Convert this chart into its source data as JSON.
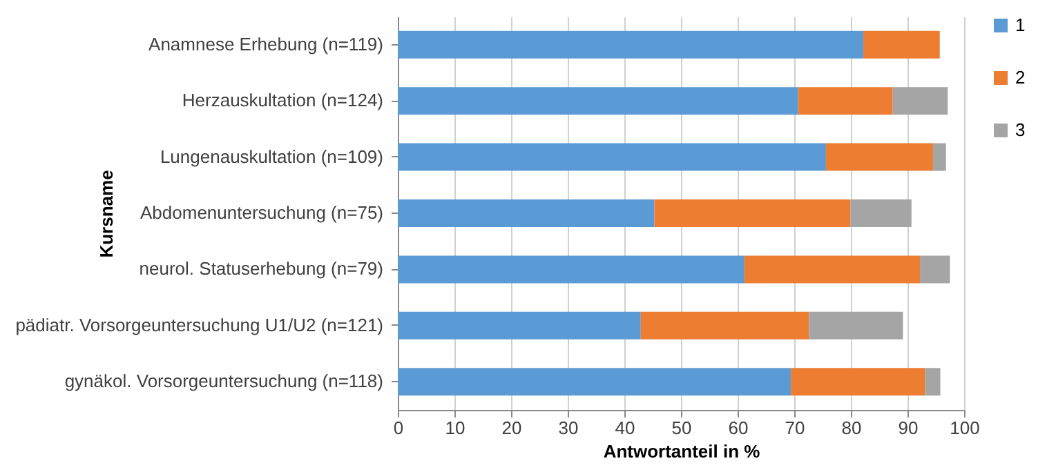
{
  "chart_data": {
    "type": "bar",
    "orientation": "horizontal",
    "stacked": true,
    "xlabel": "Antwortanteil in %",
    "ylabel": "Kursname",
    "categories": [
      "Anamnese Erhebung (n=119)",
      "Herzauskultation (n=124)",
      "Lungenauskultation (n=109)",
      "Abdomenuntersuchung (n=75)",
      "neurol. Statuserhebung (n=79)",
      "pädiatr. Vorsorgeuntersuchung U1/U2 (n=121)",
      "gynäkol. Vorsorgeuntersuchung (n=118)"
    ],
    "series": [
      {
        "name": "1",
        "color": "#5b9bd5",
        "values": [
          82.2,
          70.7,
          75.6,
          45.3,
          61.2,
          42.9,
          69.4
        ]
      },
      {
        "name": "2",
        "color": "#ed7d31",
        "values": [
          13.5,
          16.7,
          18.9,
          34.6,
          31.0,
          29.7,
          23.7
        ]
      },
      {
        "name": "3",
        "color": "#a5a5a5",
        "values": [
          0,
          9.7,
          2.3,
          10.8,
          5.3,
          16.6,
          2.7
        ]
      }
    ],
    "xlim": [
      0,
      100
    ],
    "xticks": [
      0,
      10,
      20,
      30,
      40,
      50,
      60,
      70,
      80,
      90,
      100
    ],
    "grid": "x",
    "legend": "right"
  }
}
